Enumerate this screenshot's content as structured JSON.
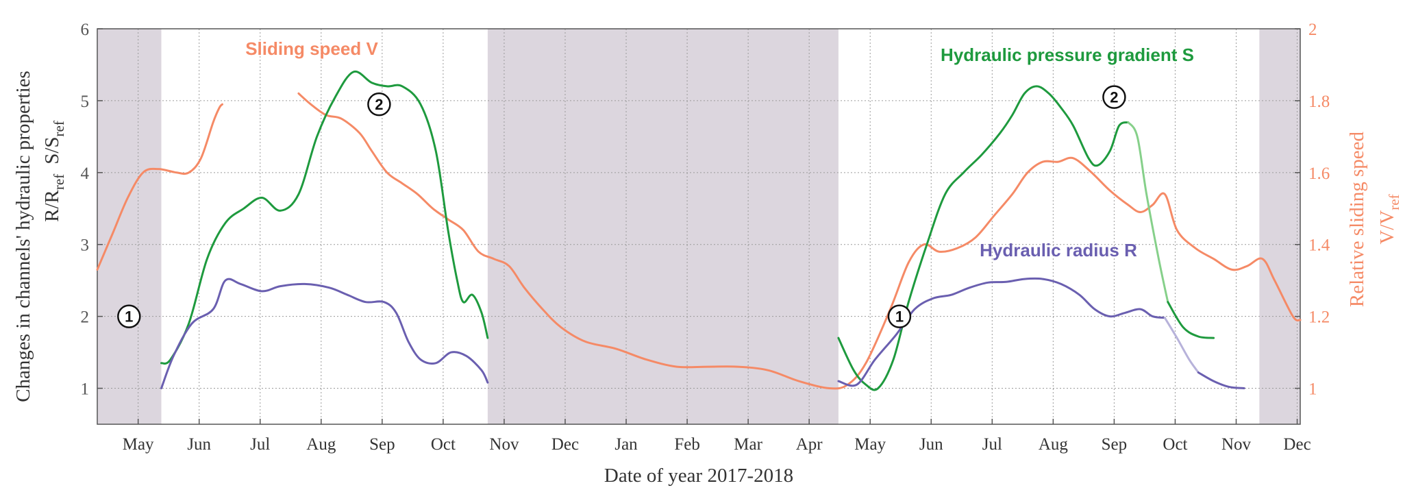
{
  "chart_data": {
    "type": "line",
    "xlabel": "Date of year 2017-2018",
    "ylabel_left": "Changes in channels' hydraulic properties",
    "ylabel_left_sub1": "R/R",
    "ylabel_left_sub1_sub": "ref",
    "ylabel_left_sub2": "S/S",
    "ylabel_left_sub2_sub": "ref",
    "ylabel_right": "Relative sliding speed",
    "ylabel_right_sub": "V/V",
    "ylabel_right_sub_sub": "ref",
    "x_range": [
      0,
      19.72
    ],
    "ylim_left": [
      0.5,
      6
    ],
    "ylim_right": [
      0.9,
      2
    ],
    "yticks_left": [
      1,
      2,
      3,
      4,
      5,
      6
    ],
    "yticks_right": [
      1,
      1.2,
      1.4,
      1.6,
      1.8,
      2
    ],
    "month_ticks": [
      {
        "label": "May",
        "x": 0.67
      },
      {
        "label": "Jun",
        "x": 1.67
      },
      {
        "label": "Jul",
        "x": 2.67
      },
      {
        "label": "Aug",
        "x": 3.67
      },
      {
        "label": "Sep",
        "x": 4.67
      },
      {
        "label": "Oct",
        "x": 5.67
      },
      {
        "label": "Nov",
        "x": 6.67
      },
      {
        "label": "Dec",
        "x": 7.67
      },
      {
        "label": "Jan",
        "x": 8.67
      },
      {
        "label": "Feb",
        "x": 9.67
      },
      {
        "label": "Mar",
        "x": 10.67
      },
      {
        "label": "Apr",
        "x": 11.67
      },
      {
        "label": "May",
        "x": 12.67
      },
      {
        "label": "Jun",
        "x": 13.67
      },
      {
        "label": "Jul",
        "x": 14.67
      },
      {
        "label": "Aug",
        "x": 15.67
      },
      {
        "label": "Sep",
        "x": 16.67
      },
      {
        "label": "Oct",
        "x": 17.67
      },
      {
        "label": "Nov",
        "x": 18.67
      },
      {
        "label": "Dec",
        "x": 19.67
      }
    ],
    "grid": true,
    "shaded_periods": [
      [
        0,
        1.05
      ],
      [
        6.4,
        12.15
      ],
      [
        19.05,
        19.72
      ]
    ],
    "colors": {
      "sliding_speed": "#f58a66",
      "pressure_gradient": "#1e9a3e",
      "pressure_gradient_light": "#86d08a",
      "hydraulic_radius": "#6a5fb0",
      "hydraulic_radius_light": "#b7b2da",
      "shading": "#dcd6de",
      "axis": "#555555"
    },
    "series_labels": {
      "sliding_speed": "Sliding speed V",
      "pressure_gradient": "Hydraulic pressure gradient S",
      "hydraulic_radius": "Hydraulic radius R"
    },
    "series": [
      {
        "key": "sliding_speed",
        "axis": "right",
        "segments": [
          [
            [
              0.0,
              1.33
            ],
            [
              0.25,
              1.43
            ],
            [
              0.5,
              1.53
            ],
            [
              0.75,
              1.6
            ],
            [
              1.0,
              1.61
            ],
            [
              1.3,
              1.6
            ],
            [
              1.5,
              1.6
            ],
            [
              1.7,
              1.64
            ],
            [
              1.9,
              1.74
            ],
            [
              2.0,
              1.78
            ],
            [
              2.05,
              1.79
            ]
          ],
          [
            [
              3.3,
              1.82
            ],
            [
              3.5,
              1.79
            ],
            [
              3.75,
              1.76
            ],
            [
              4.0,
              1.75
            ],
            [
              4.3,
              1.71
            ],
            [
              4.5,
              1.66
            ],
            [
              4.75,
              1.6
            ],
            [
              5.0,
              1.57
            ],
            [
              5.25,
              1.54
            ],
            [
              5.5,
              1.5
            ],
            [
              5.75,
              1.47
            ],
            [
              6.0,
              1.44
            ],
            [
              6.25,
              1.38
            ],
            [
              6.5,
              1.36
            ],
            [
              6.75,
              1.34
            ],
            [
              7.0,
              1.28
            ],
            [
              7.3,
              1.22
            ],
            [
              7.6,
              1.17
            ],
            [
              8.0,
              1.13
            ],
            [
              8.5,
              1.11
            ],
            [
              9.0,
              1.08
            ],
            [
              9.5,
              1.06
            ],
            [
              10.0,
              1.06
            ],
            [
              10.5,
              1.06
            ],
            [
              11.0,
              1.05
            ],
            [
              11.5,
              1.02
            ],
            [
              12.0,
              1.0
            ],
            [
              12.3,
              1.01
            ],
            [
              12.6,
              1.07
            ],
            [
              13.0,
              1.22
            ],
            [
              13.3,
              1.35
            ],
            [
              13.55,
              1.4
            ],
            [
              13.8,
              1.38
            ],
            [
              14.1,
              1.39
            ],
            [
              14.4,
              1.42
            ],
            [
              14.7,
              1.48
            ],
            [
              15.0,
              1.54
            ],
            [
              15.25,
              1.6
            ],
            [
              15.5,
              1.63
            ],
            [
              15.75,
              1.63
            ],
            [
              16.0,
              1.64
            ],
            [
              16.3,
              1.6
            ],
            [
              16.6,
              1.55
            ],
            [
              16.9,
              1.51
            ],
            [
              17.1,
              1.49
            ],
            [
              17.3,
              1.51
            ],
            [
              17.5,
              1.54
            ],
            [
              17.7,
              1.44
            ],
            [
              18.0,
              1.39
            ],
            [
              18.3,
              1.36
            ],
            [
              18.6,
              1.33
            ],
            [
              18.85,
              1.34
            ],
            [
              19.1,
              1.36
            ],
            [
              19.3,
              1.3
            ],
            [
              19.6,
              1.2
            ],
            [
              19.72,
              1.19
            ]
          ]
        ]
      },
      {
        "key": "pressure_gradient",
        "axis": "left",
        "segments": [
          [
            [
              1.05,
              1.35
            ],
            [
              1.2,
              1.4
            ],
            [
              1.5,
              1.9
            ],
            [
              1.8,
              2.8
            ],
            [
              2.1,
              3.3
            ],
            [
              2.4,
              3.5
            ],
            [
              2.7,
              3.65
            ],
            [
              3.0,
              3.47
            ],
            [
              3.3,
              3.7
            ],
            [
              3.6,
              4.5
            ],
            [
              3.9,
              5.05
            ],
            [
              4.2,
              5.4
            ],
            [
              4.5,
              5.25
            ],
            [
              4.75,
              5.2
            ],
            [
              5.0,
              5.2
            ],
            [
              5.3,
              4.95
            ],
            [
              5.55,
              4.3
            ],
            [
              5.75,
              3.2
            ],
            [
              5.9,
              2.5
            ],
            [
              6.0,
              2.2
            ],
            [
              6.15,
              2.3
            ],
            [
              6.3,
              2.05
            ],
            [
              6.4,
              1.7
            ]
          ],
          [
            [
              12.15,
              1.7
            ],
            [
              12.4,
              1.25
            ],
            [
              12.6,
              1.05
            ],
            [
              12.8,
              1.0
            ],
            [
              13.05,
              1.4
            ],
            [
              13.3,
              2.2
            ],
            [
              13.6,
              3.0
            ],
            [
              13.9,
              3.7
            ],
            [
              14.2,
              4.0
            ],
            [
              14.5,
              4.25
            ],
            [
              14.8,
              4.55
            ],
            [
              15.0,
              4.8
            ],
            [
              15.2,
              5.1
            ],
            [
              15.4,
              5.2
            ],
            [
              15.6,
              5.1
            ],
            [
              15.8,
              4.9
            ],
            [
              16.0,
              4.65
            ],
            [
              16.25,
              4.2
            ],
            [
              16.4,
              4.1
            ],
            [
              16.6,
              4.3
            ],
            [
              16.75,
              4.65
            ],
            [
              16.9,
              4.7
            ]
          ],
          [
            [
              16.9,
              4.7
            ],
            [
              17.05,
              4.5
            ],
            [
              17.2,
              3.7
            ],
            [
              17.4,
              2.8
            ],
            [
              17.55,
              2.2
            ]
          ],
          [
            [
              17.55,
              2.2
            ],
            [
              17.8,
              1.85
            ],
            [
              18.05,
              1.72
            ],
            [
              18.3,
              1.7
            ]
          ]
        ],
        "light_segment_index": 2
      },
      {
        "key": "hydraulic_radius",
        "axis": "left",
        "segments": [
          [
            [
              1.05,
              1.0
            ],
            [
              1.25,
              1.45
            ],
            [
              1.55,
              1.9
            ],
            [
              1.9,
              2.1
            ],
            [
              2.1,
              2.5
            ],
            [
              2.35,
              2.45
            ],
            [
              2.7,
              2.35
            ],
            [
              3.0,
              2.42
            ],
            [
              3.4,
              2.45
            ],
            [
              3.8,
              2.4
            ],
            [
              4.1,
              2.3
            ],
            [
              4.4,
              2.2
            ],
            [
              4.7,
              2.2
            ],
            [
              4.9,
              2.05
            ],
            [
              5.1,
              1.65
            ],
            [
              5.3,
              1.4
            ],
            [
              5.55,
              1.35
            ],
            [
              5.8,
              1.5
            ],
            [
              6.05,
              1.45
            ],
            [
              6.3,
              1.25
            ],
            [
              6.4,
              1.08
            ]
          ],
          [
            [
              12.15,
              1.1
            ],
            [
              12.45,
              1.05
            ],
            [
              12.75,
              1.4
            ],
            [
              13.1,
              1.75
            ],
            [
              13.4,
              2.1
            ],
            [
              13.7,
              2.25
            ],
            [
              14.0,
              2.3
            ],
            [
              14.3,
              2.4
            ],
            [
              14.6,
              2.47
            ],
            [
              14.9,
              2.48
            ],
            [
              15.2,
              2.52
            ],
            [
              15.5,
              2.52
            ],
            [
              15.8,
              2.45
            ],
            [
              16.1,
              2.3
            ],
            [
              16.35,
              2.1
            ],
            [
              16.6,
              2.0
            ],
            [
              16.85,
              2.05
            ],
            [
              17.1,
              2.1
            ],
            [
              17.3,
              2.0
            ],
            [
              17.5,
              1.98
            ]
          ],
          [
            [
              17.5,
              1.98
            ],
            [
              17.7,
              1.7
            ],
            [
              17.9,
              1.4
            ],
            [
              18.05,
              1.22
            ]
          ],
          [
            [
              18.05,
              1.22
            ],
            [
              18.3,
              1.1
            ],
            [
              18.55,
              1.02
            ],
            [
              18.8,
              1.0
            ]
          ]
        ],
        "light_segment_index": 2
      }
    ],
    "markers": [
      {
        "label": "1",
        "x": 0.52,
        "y": 2.0
      },
      {
        "label": "2",
        "x": 4.62,
        "y": 4.95
      },
      {
        "label": "1",
        "x": 13.15,
        "y": 2.0
      },
      {
        "label": "2",
        "x": 16.67,
        "y": 5.05
      }
    ]
  }
}
